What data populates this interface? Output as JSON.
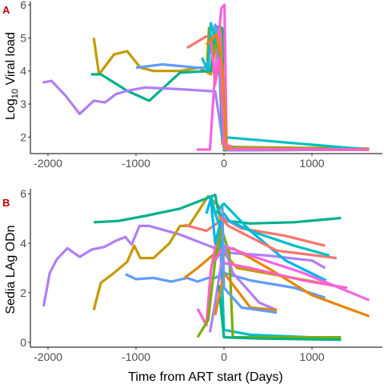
{
  "chart_data": [
    {
      "type": "line",
      "panel_label": "A",
      "ylabel_prefix": "Log",
      "ylabel_subscript": "10",
      "ylabel_suffix": " Viral load",
      "xlabel": "",
      "xlim": [
        -2200,
        1800
      ],
      "ylim": [
        1.5,
        6.1
      ],
      "x_ticks": [
        -2000,
        -1000,
        0,
        1000
      ],
      "y_ticks": [
        2,
        3,
        4,
        5,
        6
      ],
      "grid": false,
      "series": [
        {
          "color": "#c49a00",
          "points": [
            [
              -1480,
              5.0
            ],
            [
              -1420,
              3.9
            ],
            [
              -1250,
              4.5
            ],
            [
              -1100,
              4.6
            ],
            [
              -950,
              4.1
            ],
            [
              -800,
              4.0
            ],
            [
              -500,
              4.0
            ],
            [
              -280,
              4.1
            ],
            [
              -150,
              3.9
            ],
            [
              -60,
              5.3
            ],
            [
              -20,
              1.8
            ],
            [
              100,
              1.7
            ],
            [
              1650,
              1.65
            ]
          ]
        },
        {
          "color": "#00b08b",
          "points": [
            [
              -1510,
              3.9
            ],
            [
              -1400,
              3.9
            ],
            [
              -1100,
              3.4
            ],
            [
              -850,
              3.1
            ],
            [
              -500,
              3.95
            ],
            [
              -150,
              4.0
            ],
            [
              -100,
              5.35
            ],
            [
              -20,
              5.3
            ],
            [
              0,
              1.6
            ],
            [
              1650,
              1.62
            ]
          ]
        },
        {
          "color": "#b07ff6",
          "points": [
            [
              -2060,
              3.65
            ],
            [
              -1960,
              3.7
            ],
            [
              -1800,
              3.25
            ],
            [
              -1640,
              2.7
            ],
            [
              -1480,
              3.1
            ],
            [
              -1350,
              3.05
            ],
            [
              -1230,
              3.3
            ],
            [
              -1100,
              3.4
            ],
            [
              -900,
              3.5
            ],
            [
              -500,
              3.45
            ],
            [
              -100,
              3.38
            ],
            [
              0,
              1.65
            ],
            [
              1650,
              1.62
            ]
          ]
        },
        {
          "color": "#619cff",
          "points": [
            [
              -1000,
              4.1
            ],
            [
              -700,
              4.2
            ],
            [
              -300,
              4.1
            ],
            [
              -200,
              4.1
            ],
            [
              -100,
              5.4
            ],
            [
              -30,
              4.5
            ],
            [
              30,
              1.6
            ],
            [
              1650,
              1.62
            ]
          ]
        },
        {
          "color": "#7cae00",
          "points": [
            [
              -190,
              4.3
            ],
            [
              -170,
              5.3
            ],
            [
              -120,
              4.6
            ],
            [
              -40,
              5.35
            ],
            [
              0,
              1.7
            ],
            [
              1650,
              1.62
            ]
          ]
        },
        {
          "color": "#f8766d",
          "points": [
            [
              -420,
              4.7
            ],
            [
              -200,
              5.05
            ],
            [
              -100,
              5.0
            ],
            [
              -40,
              5.2
            ],
            [
              10,
              1.65
            ],
            [
              1650,
              1.62
            ]
          ]
        },
        {
          "color": "#f564e3",
          "points": [
            [
              -310,
              1.62
            ],
            [
              -160,
              1.62
            ],
            [
              -100,
              4.0
            ],
            [
              -30,
              5.9
            ],
            [
              5,
              6.0
            ],
            [
              30,
              1.62
            ],
            [
              1650,
              1.62
            ]
          ]
        },
        {
          "color": "#00bfc4",
          "points": [
            [
              -250,
              4.4
            ],
            [
              -180,
              4.0
            ],
            [
              -150,
              5.45
            ],
            [
              -60,
              4.6
            ],
            [
              -20,
              2.0
            ],
            [
              1650,
              1.62
            ]
          ]
        },
        {
          "color": "#e58700",
          "points": [
            [
              -200,
              4.8
            ],
            [
              -90,
              5.1
            ],
            [
              -20,
              4.2
            ],
            [
              30,
              1.65
            ],
            [
              1650,
              1.62
            ]
          ]
        },
        {
          "color": "#ff61c3",
          "points": [
            [
              -150,
              4.9
            ],
            [
              -100,
              3.6
            ],
            [
              -50,
              4.4
            ],
            [
              0,
              1.8
            ],
            [
              100,
              1.65
            ],
            [
              1650,
              1.62
            ]
          ]
        }
      ]
    },
    {
      "type": "line",
      "panel_label": "B",
      "ylabel": "Sedia LAg ODn",
      "xlabel": "Time from ART start (Days)",
      "xlim": [
        -2200,
        1800
      ],
      "ylim": [
        -0.2,
        6.2
      ],
      "x_ticks": [
        -2000,
        -1000,
        0,
        1000
      ],
      "y_ticks": [
        0,
        2,
        4,
        6
      ],
      "grid": false,
      "series": [
        {
          "color": "#b07ff6",
          "points": [
            [
              -2050,
              1.45
            ],
            [
              -1980,
              2.8
            ],
            [
              -1900,
              3.35
            ],
            [
              -1780,
              3.8
            ],
            [
              -1640,
              3.45
            ],
            [
              -1500,
              3.75
            ],
            [
              -1360,
              3.85
            ],
            [
              -1230,
              4.1
            ],
            [
              -1120,
              4.25
            ],
            [
              -1050,
              3.95
            ],
            [
              -960,
              4.7
            ],
            [
              -850,
              4.7
            ],
            [
              -500,
              4.35
            ],
            [
              -100,
              3.8
            ],
            [
              100,
              3.6
            ],
            [
              500,
              3.5
            ],
            [
              1000,
              3.3
            ],
            [
              1150,
              3.0
            ]
          ]
        },
        {
          "color": "#c49a00",
          "points": [
            [
              -1480,
              1.3
            ],
            [
              -1400,
              2.4
            ],
            [
              -1250,
              2.8
            ],
            [
              -1100,
              3.25
            ],
            [
              -1020,
              3.9
            ],
            [
              -950,
              3.4
            ],
            [
              -800,
              3.4
            ],
            [
              -620,
              4.0
            ],
            [
              -500,
              4.7
            ],
            [
              -400,
              4.7
            ],
            [
              -180,
              5.9
            ],
            [
              -60,
              5.5
            ],
            [
              0,
              3.6
            ],
            [
              150,
              3.0
            ],
            [
              1100,
              2.4
            ]
          ]
        },
        {
          "color": "#00b08b",
          "points": [
            [
              -1480,
              4.85
            ],
            [
              -1200,
              4.9
            ],
            [
              -900,
              5.1
            ],
            [
              -500,
              5.4
            ],
            [
              -100,
              5.95
            ],
            [
              -60,
              5.2
            ],
            [
              30,
              4.9
            ],
            [
              300,
              4.8
            ],
            [
              800,
              4.85
            ],
            [
              1330,
              5.02
            ]
          ]
        },
        {
          "color": "#619cff",
          "points": [
            [
              -1120,
              2.75
            ],
            [
              -1000,
              2.55
            ],
            [
              -800,
              2.6
            ],
            [
              -600,
              2.45
            ],
            [
              -420,
              2.6
            ],
            [
              -300,
              2.45
            ],
            [
              -180,
              2.6
            ],
            [
              -100,
              2.6
            ],
            [
              0,
              2.8
            ],
            [
              300,
              2.5
            ],
            [
              800,
              2.2
            ],
            [
              1150,
              1.8
            ]
          ]
        },
        {
          "color": "#f8766d",
          "points": [
            [
              -450,
              4.75
            ],
            [
              -200,
              4.5
            ],
            [
              0,
              5.0
            ],
            [
              200,
              4.6
            ],
            [
              700,
              4.3
            ],
            [
              1150,
              3.9
            ]
          ]
        },
        {
          "color": "#e58700",
          "points": [
            [
              -450,
              2.6
            ],
            [
              -300,
              3.0
            ],
            [
              -100,
              3.6
            ],
            [
              100,
              3.8
            ],
            [
              500,
              3.0
            ],
            [
              1000,
              1.9
            ],
            [
              1650,
              1.05
            ]
          ]
        },
        {
          "color": "#ff61c3",
          "points": [
            [
              -300,
              1.35
            ],
            [
              -200,
              0.7
            ],
            [
              -150,
              2.9
            ],
            [
              -60,
              4.5
            ],
            [
              0,
              3.2
            ],
            [
              300,
              3.0
            ],
            [
              900,
              2.5
            ],
            [
              1400,
              2.2
            ]
          ]
        },
        {
          "color": "#00bfc4",
          "points": [
            [
              -150,
              5.95
            ],
            [
              -100,
              5.2
            ],
            [
              -50,
              4.7
            ],
            [
              0,
              0.5
            ],
            [
              300,
              0.3
            ],
            [
              1330,
              0.15
            ]
          ]
        },
        {
          "color": "#7cae00",
          "points": [
            [
              -300,
              0.2
            ],
            [
              -180,
              0.9
            ],
            [
              -100,
              3.3
            ],
            [
              -30,
              4.6
            ],
            [
              60,
              3.6
            ],
            [
              100,
              0.2
            ],
            [
              500,
              0.2
            ],
            [
              1330,
              0.2
            ]
          ]
        },
        {
          "color": "#00b4ef",
          "points": [
            [
              -200,
              5.2
            ],
            [
              -150,
              5.8
            ],
            [
              -100,
              4.0
            ],
            [
              -30,
              5.0
            ],
            [
              0,
              5.2
            ],
            [
              60,
              4.9
            ],
            [
              300,
              4.5
            ],
            [
              700,
              3.3
            ],
            [
              1160,
              2.5
            ]
          ]
        },
        {
          "color": "#f564e3",
          "points": [
            [
              -100,
              3.3
            ],
            [
              0,
              3.9
            ],
            [
              300,
              3.5
            ],
            [
              900,
              2.8
            ],
            [
              1650,
              1.7
            ]
          ]
        },
        {
          "color": "#b07ff6",
          "points": [
            [
              -160,
              0.4
            ],
            [
              -100,
              1.6
            ],
            [
              0,
              3.9
            ],
            [
              100,
              2.8
            ],
            [
              400,
              1.6
            ],
            [
              600,
              1.3
            ]
          ]
        },
        {
          "color": "#00b08b",
          "points": [
            [
              -60,
              2.3
            ],
            [
              0,
              0.2
            ],
            [
              400,
              0.15
            ],
            [
              1330,
              0.1
            ]
          ]
        },
        {
          "color": "#e58700",
          "points": [
            [
              -100,
              1.1
            ],
            [
              0,
              2.8
            ],
            [
              300,
              1.4
            ],
            [
              600,
              1.3
            ]
          ]
        },
        {
          "color": "#619cff",
          "points": [
            [
              -20,
              5.6
            ],
            [
              0,
              2.2
            ],
            [
              200,
              1.4
            ],
            [
              600,
              1.2
            ]
          ]
        },
        {
          "color": "#f8766d",
          "points": [
            [
              -60,
              5.1
            ],
            [
              50,
              4.7
            ],
            [
              600,
              3.7
            ],
            [
              1280,
              3.4
            ]
          ]
        },
        {
          "color": "#00bfc4",
          "points": [
            [
              -100,
              5.2
            ],
            [
              0,
              5.6
            ],
            [
              300,
              4.5
            ],
            [
              800,
              3.9
            ],
            [
              1200,
              3.5
            ]
          ]
        }
      ]
    }
  ]
}
